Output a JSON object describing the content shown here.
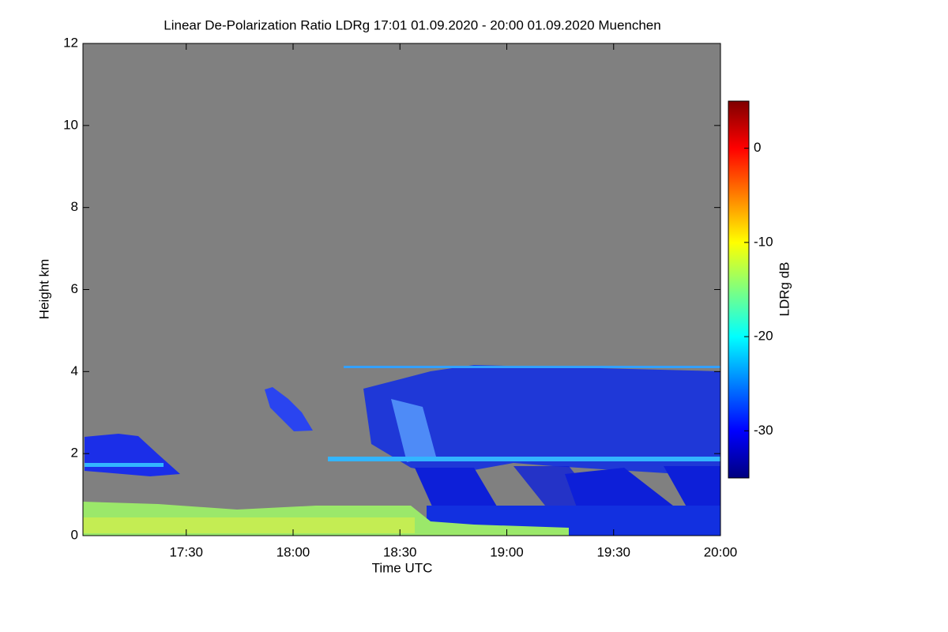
{
  "chart_data": {
    "type": "heatmap",
    "title": "Linear De-Polarization Ratio LDRg   17:01 01.09.2020 - 20:00 01.09.2020 Muenchen",
    "x_label": "Time UTC",
    "y_label": "Height km",
    "colorbar_label": "LDRg dB",
    "xlim": [
      1021,
      1200
    ],
    "xticks": [
      {
        "value": 1050,
        "label": "17:30"
      },
      {
        "value": 1080,
        "label": "18:00"
      },
      {
        "value": 1110,
        "label": "18:30"
      },
      {
        "value": 1140,
        "label": "19:00"
      },
      {
        "value": 1170,
        "label": "19:30"
      },
      {
        "value": 1200,
        "label": "20:00"
      }
    ],
    "ylim": [
      0,
      12
    ],
    "yticks": [
      0,
      2,
      4,
      6,
      8,
      10,
      12
    ],
    "zlim": [
      -35,
      5
    ],
    "zticks": [
      0,
      -10,
      -20,
      -30
    ],
    "colormap": [
      "#00007f",
      "#0000ff",
      "#007fff",
      "#00ffff",
      "#7fff7f",
      "#ffff00",
      "#ff7f00",
      "#ff0000",
      "#7f0000"
    ],
    "background_color": "#808080"
  }
}
